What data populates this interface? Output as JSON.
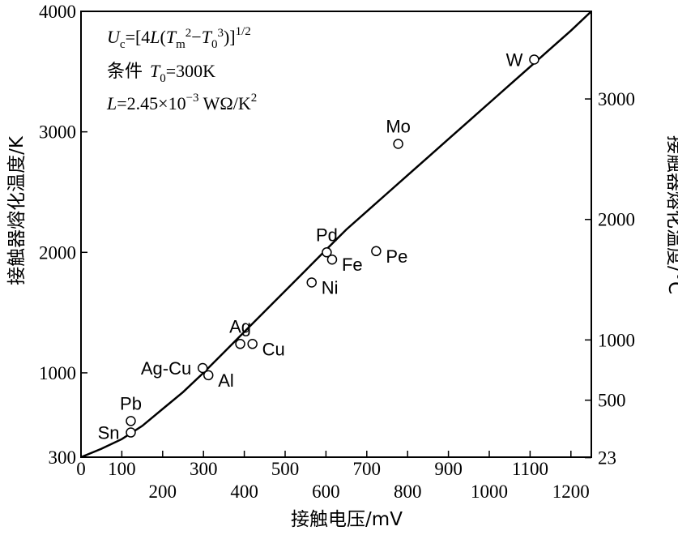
{
  "chart_data": {
    "type": "scatter",
    "annotation": {
      "line1": "U_c=[4L(T_m^2−T_0^3)]^1/2",
      "line2_prefix": "条件",
      "line2": "T_0=300K",
      "line3": "L=2.45×10^−3 WΩ/K^2"
    },
    "xlabel": "接触电压/mV",
    "ylabel_left": "接触器熔化温度/K",
    "ylabel_right": "接触器熔化温度/°C",
    "xlim": [
      0,
      1250
    ],
    "ylim": [
      300,
      4000
    ],
    "x_ticks_upper": [
      {
        "value": 0,
        "label": "0"
      },
      {
        "value": 100,
        "label": "100"
      },
      {
        "value": 300,
        "label": "300"
      },
      {
        "value": 500,
        "label": "500"
      },
      {
        "value": 700,
        "label": "700"
      },
      {
        "value": 900,
        "label": "900"
      },
      {
        "value": 1100,
        "label": "1100"
      }
    ],
    "x_ticks_lower": [
      {
        "value": 200,
        "label": "200"
      },
      {
        "value": 400,
        "label": "400"
      },
      {
        "value": 600,
        "label": "600"
      },
      {
        "value": 800,
        "label": "800"
      },
      {
        "value": 1000,
        "label": "1000"
      },
      {
        "value": 1200,
        "label": "1200"
      }
    ],
    "y_ticks_left": [
      {
        "value": 300,
        "label": "300"
      },
      {
        "value": 1000,
        "label": "1000"
      },
      {
        "value": 2000,
        "label": "2000"
      },
      {
        "value": 3000,
        "label": "3000"
      },
      {
        "value": 4000,
        "label": "4000"
      }
    ],
    "y_ticks_right": [
      {
        "value_k": 296,
        "label": "23"
      },
      {
        "value_k": 773,
        "label": "500"
      },
      {
        "value_k": 1273,
        "label": "1000"
      },
      {
        "value_k": 2273,
        "label": "2000"
      },
      {
        "value_k": 3273,
        "label": "3000"
      }
    ],
    "points": [
      {
        "name": "Sn",
        "x": 122,
        "y": 505,
        "label_pos": "left"
      },
      {
        "name": "Pb",
        "x": 122,
        "y": 600,
        "label_pos": "above"
      },
      {
        "name": "Al",
        "x": 312,
        "y": 980,
        "label_pos": "right"
      },
      {
        "name": "Ag-Cu",
        "x": 298,
        "y": 1040,
        "label_pos": "left"
      },
      {
        "name": "Ag",
        "x": 390,
        "y": 1240,
        "label_pos": "above"
      },
      {
        "name": "Cu",
        "x": 420,
        "y": 1240,
        "label_pos": "right"
      },
      {
        "name": "Ni",
        "x": 565,
        "y": 1750,
        "label_pos": "right"
      },
      {
        "name": "Pd",
        "x": 602,
        "y": 2000,
        "label_pos": "above"
      },
      {
        "name": "Fe",
        "x": 615,
        "y": 1940,
        "label_pos": "right"
      },
      {
        "name": "Pe",
        "x": 723,
        "y": 2010,
        "label_pos": "right"
      },
      {
        "name": "Mo",
        "x": 777,
        "y": 2900,
        "label_pos": "above"
      },
      {
        "name": "W",
        "x": 1110,
        "y": 3600,
        "label_pos": "left"
      }
    ],
    "curve": {
      "x": [
        0,
        50,
        100,
        150,
        200,
        250,
        300,
        350,
        400,
        450,
        500,
        550,
        600,
        650,
        700,
        750,
        800,
        850,
        900,
        950,
        1000,
        1050,
        1100,
        1150,
        1200,
        1250
      ],
      "y": [
        300,
        370,
        450,
        560,
        700,
        840,
        1000,
        1170,
        1340,
        1510,
        1680,
        1850,
        2020,
        2190,
        2340,
        2490,
        2640,
        2790,
        2940,
        3090,
        3240,
        3390,
        3540,
        3690,
        3840,
        4000
      ]
    }
  }
}
